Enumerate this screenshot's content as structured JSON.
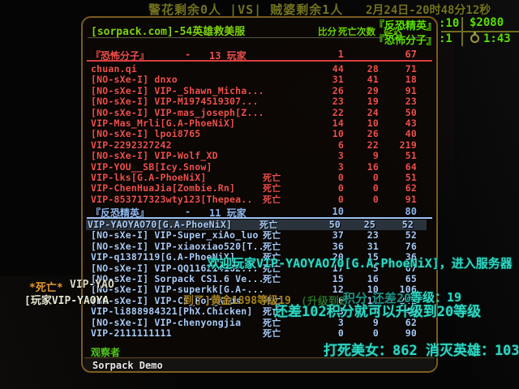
{
  "colors": {
    "terrorist_red": "#F0504B",
    "ct_blue": "#A8CAF5",
    "hud_green": "#5BE000",
    "title_green": "#7FD40A",
    "olive": "#73731E",
    "teal": "#2FD6C2",
    "yellow": "#BD9420",
    "orange": "#E6992E",
    "board_border": "#7B5B1E"
  },
  "hud": {
    "top_status": "警花剩余0人 |VS| 贼婆剩余1人",
    "datetime": "2月24日-20时48分12秒",
    "round_panel": {
      "team1_label": "『反恐精英』",
      "team1_score": ":10",
      "money": "$2080",
      "team2_label": "『恐怖分子』",
      "team2_score": ":1",
      "timer_icon": "stopwatch-icon",
      "timer": "1:43"
    },
    "messages": {
      "death_prefix": "*死亡*",
      "death_name": "VIP-YAO",
      "player_prefix": "[玩家VIP-YAOYA",
      "frag_yellow": "到了]黄金1898等级19",
      "frag_green": "(升级到2",
      "frag_score": "积分",
      "frag_diff": "还差202",
      "frag_level": "等级：19",
      "welcome": "欢迎玩家VIP-YAOYAO70[G.A-PhoeNiX]，进入服务器",
      "upgrade": "还差102积分就可以升级到20等级",
      "stats": "打死美女：862 消灭英雄：1036"
    }
  },
  "scoreboard": {
    "title": "[sorpack.com]-54英雄救美服",
    "columns": {
      "score": "比分",
      "deaths": "死亡次数",
      "latency": "延迟"
    },
    "dead_label": "死亡",
    "spectators_label": "观察者",
    "spectators": [
      "Sorpack Demo"
    ],
    "teams": [
      {
        "side": "t",
        "name": "『恐怖分子』",
        "dash": "-",
        "count": "13 玩家",
        "score": "1",
        "latency": "67",
        "players": [
          {
            "name": "chuan.qi",
            "dead": false,
            "highlight": false,
            "score": "44",
            "deaths": "28",
            "latency": "71"
          },
          {
            "name": "[NO-sXe-I] dnxo",
            "dead": false,
            "highlight": false,
            "score": "31",
            "deaths": "41",
            "latency": "18"
          },
          {
            "name": "[NO-sXe-I] VIP-_Shawn_Micha...",
            "dead": false,
            "highlight": false,
            "score": "26",
            "deaths": "29",
            "latency": "91"
          },
          {
            "name": "[NO-sXe-I] VIP-M1974519307...",
            "dead": false,
            "highlight": false,
            "score": "23",
            "deaths": "19",
            "latency": "23"
          },
          {
            "name": "[NO-sXe-I] VIP-mas_joseph[Z...",
            "dead": false,
            "highlight": false,
            "score": "22",
            "deaths": "24",
            "latency": "50"
          },
          {
            "name": "VIP-Mas_Mrli[G.A-PhoeNiX]",
            "dead": false,
            "highlight": false,
            "score": "14",
            "deaths": "10",
            "latency": "43"
          },
          {
            "name": "[NO-sXe-I] lpoi8765",
            "dead": false,
            "highlight": false,
            "score": "10",
            "deaths": "26",
            "latency": "40"
          },
          {
            "name": "VIP-2292327242",
            "dead": false,
            "highlight": false,
            "score": "6",
            "deaths": "22",
            "latency": "219"
          },
          {
            "name": "[NO-sXe-I] VIP-Wolf_XD",
            "dead": false,
            "highlight": false,
            "score": "3",
            "deaths": "9",
            "latency": "51"
          },
          {
            "name": "VIP-YOU__SB[Icy.Snow]",
            "dead": false,
            "highlight": false,
            "score": "3",
            "deaths": "16",
            "latency": "64"
          },
          {
            "name": "VIP-lks[G.A-PhoeNiX]",
            "dead": true,
            "highlight": false,
            "score": "0",
            "deaths": "0",
            "latency": "51"
          },
          {
            "name": "VIP-ChenHuaJia[Zombie.Rn]",
            "dead": true,
            "highlight": false,
            "score": "0",
            "deaths": "0",
            "latency": "62"
          },
          {
            "name": "VIP-853717323wty123[Thepea..",
            "dead": true,
            "highlight": false,
            "score": "0",
            "deaths": "0",
            "latency": "91"
          }
        ]
      },
      {
        "side": "ct",
        "name": "『反恐精英』",
        "dash": "-",
        "count": "11 玩家",
        "score": "10",
        "latency": "80",
        "players": [
          {
            "name": "VIP-YAOYAO70[G.A-PhoeNiX]",
            "dead": true,
            "highlight": true,
            "score": "50",
            "deaths": "25",
            "latency": "52"
          },
          {
            "name": "[NO-sXe-I] VIP-Super_xiAo_luo",
            "dead": true,
            "highlight": false,
            "score": "37",
            "deaths": "23",
            "latency": "52"
          },
          {
            "name": "[NO-sXe-I] VIP-xiaoxiao520[T..",
            "dead": true,
            "highlight": false,
            "score": "36",
            "deaths": "31",
            "latency": "76"
          },
          {
            "name": "VIP-q1387119[G.A-PhoeNiX]",
            "dead": true,
            "highlight": false,
            "score": "20",
            "deaths": "15",
            "latency": "36"
          },
          {
            "name": "[NO-sXe-I] VIP-QQ116214162...",
            "dead": true,
            "highlight": false,
            "score": "17",
            "deaths": "5",
            "latency": "67"
          },
          {
            "name": "[NO-sXe-I] Sorpack CS1.6 Ve...",
            "dead": true,
            "highlight": false,
            "score": "15",
            "deaths": "16",
            "latency": "65"
          },
          {
            "name": "[NO-sXe-I] VIP-superkk[G.A-...",
            "dead": false,
            "highlight": false,
            "score": "12",
            "deaths": "10",
            "latency": "106"
          },
          {
            "name": "[NO-sXe-I] VIP-CS_For_Kids",
            "dead": true,
            "highlight": false,
            "score": "6",
            "deaths": "12",
            "latency": "241"
          },
          {
            "name": "VIP-li888984321[PhX.Chicken]",
            "dead": true,
            "highlight": false,
            "score": "3",
            "deaths": "3",
            "latency": "40"
          },
          {
            "name": "[NO-sXe-I] VIP-chenyongjia",
            "dead": true,
            "highlight": false,
            "score": "3",
            "deaths": "9",
            "latency": "62"
          },
          {
            "name": "VIP-2111111111",
            "dead": true,
            "highlight": false,
            "score": "0",
            "deaths": "0",
            "latency": "90"
          }
        ]
      }
    ]
  }
}
